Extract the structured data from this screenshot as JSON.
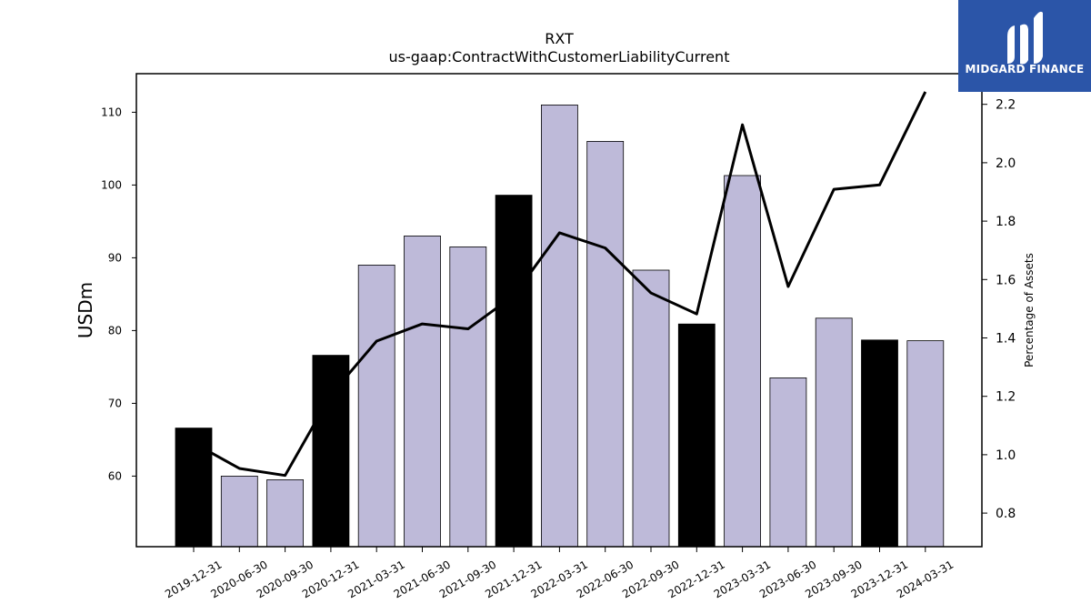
{
  "logo": {
    "text": "MIDGARD FINANCE",
    "color": "#2b55a8"
  },
  "chart_data": {
    "type": "bar",
    "title": "RXT",
    "subtitle": "us-gaap:ContractWithCustomerLiabilityCurrent",
    "ylabel": "USDm",
    "y2label": "Percentage of Assets",
    "categories": [
      "2019-12-31",
      "2020-06-30",
      "2020-09-30",
      "2020-12-31",
      "2021-03-31",
      "2021-06-30",
      "2021-09-30",
      "2021-12-31",
      "2022-03-31",
      "2022-06-30",
      "2022-09-30",
      "2022-12-31",
      "2023-03-31",
      "2023-06-30",
      "2023-09-30",
      "2023-12-31",
      "2024-03-31"
    ],
    "series": [
      {
        "type": "bar",
        "axis": "left",
        "values": [
          66.6,
          60.0,
          59.5,
          76.6,
          89.0,
          93.0,
          91.5,
          98.6,
          111.0,
          106.0,
          88.3,
          80.9,
          101.3,
          73.5,
          81.7,
          78.7,
          78.6
        ],
        "colors": [
          "#000000",
          "#bebad9",
          "#bebad9",
          "#000000",
          "#bebad9",
          "#bebad9",
          "#bebad9",
          "#000000",
          "#bebad9",
          "#bebad9",
          "#bebad9",
          "#000000",
          "#bebad9",
          "#bebad9",
          "#bebad9",
          "#000000",
          "#bebad9"
        ]
      },
      {
        "type": "line",
        "axis": "right",
        "color": "#000000",
        "values": [
          1.04,
          0.953,
          0.929,
          1.205,
          1.389,
          1.448,
          1.431,
          1.545,
          1.76,
          1.708,
          1.554,
          1.482,
          2.13,
          1.576,
          1.909,
          1.924,
          2.243
        ]
      }
    ],
    "ylim": [
      50.3,
      115.3
    ],
    "y2lim": [
      0.685,
      2.305
    ],
    "yticks": [
      60,
      70,
      80,
      90,
      100,
      110
    ],
    "y2ticks": [
      0.8,
      1.0,
      1.2,
      1.4,
      1.6,
      1.8,
      2.0,
      2.2
    ],
    "grid": false,
    "legend": "none"
  }
}
